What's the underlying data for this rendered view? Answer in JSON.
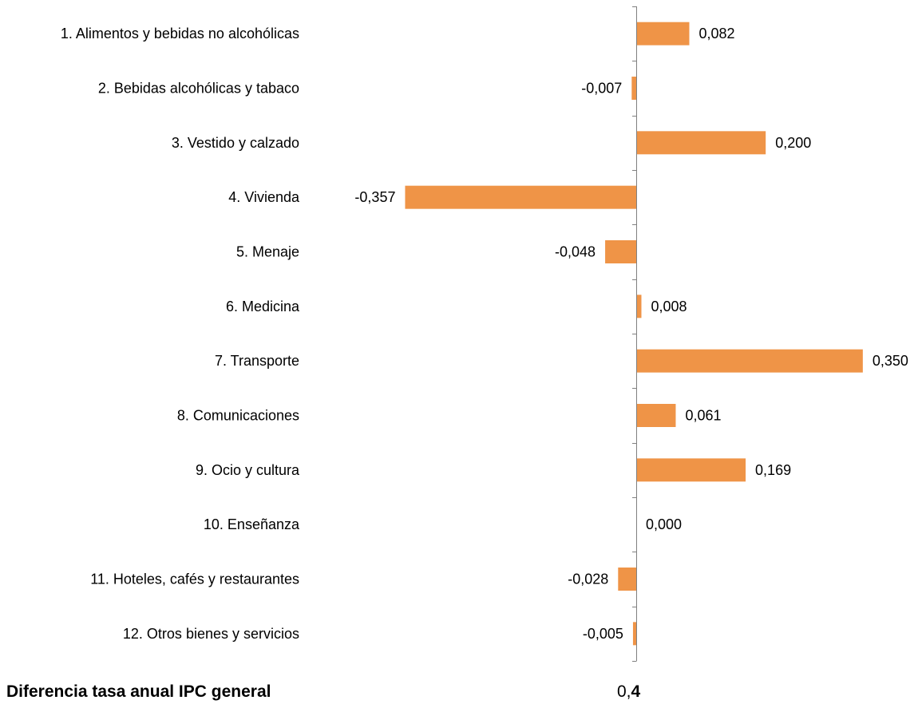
{
  "chart_data": {
    "type": "bar",
    "orientation": "horizontal",
    "categories": [
      "1. Alimentos y bebidas no alcohólicas",
      "2. Bebidas alcohólicas y tabaco",
      "3. Vestido y calzado",
      "4. Vivienda",
      "5. Menaje",
      "6. Medicina",
      "7. Transporte",
      "8. Comunicaciones",
      "9. Ocio y cultura",
      "10. Enseñanza",
      "11. Hoteles, cafés y restaurantes",
      "12. Otros bienes y servicios"
    ],
    "values": [
      0.082,
      -0.007,
      0.2,
      -0.357,
      -0.048,
      0.008,
      0.35,
      0.061,
      0.169,
      0.0,
      -0.028,
      -0.005
    ],
    "value_labels": [
      "0,082",
      "-0,007",
      "0,200",
      "-0,357",
      "-0,048",
      "0,008",
      "0,350",
      "0,061",
      "0,169",
      "0,000",
      "-0,028",
      "-0,005"
    ],
    "xlim": [
      -0.357,
      0.35
    ],
    "bar_color": "#EF9447",
    "axis_color": "#808080",
    "grid": false,
    "legend": "none"
  },
  "footer": {
    "label": "Diferencia tasa anual IPC general",
    "value_int": "0,",
    "value_dec": "4"
  }
}
